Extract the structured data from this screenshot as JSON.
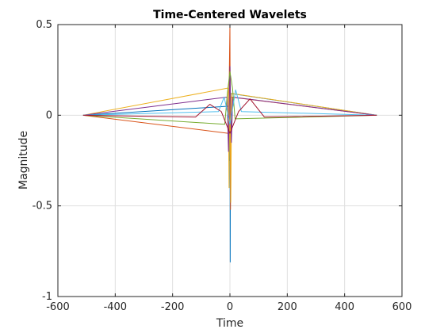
{
  "chart_data": {
    "type": "line",
    "title": "Time-Centered Wavelets",
    "xlabel": "Time",
    "ylabel": "Magnitude",
    "xlim": [
      -600,
      600
    ],
    "ylim": [
      -1,
      0.5
    ],
    "xticks": [
      -600,
      -400,
      -200,
      0,
      200,
      400,
      600
    ],
    "xtick_labels": [
      "-600",
      "-400",
      "-200",
      "0",
      "200",
      "400",
      "600"
    ],
    "yticks": [
      -1,
      -0.5,
      0,
      0.5
    ],
    "ytick_labels": [
      "-1",
      "-0.5",
      "0",
      "0.5"
    ],
    "grid": true,
    "legend": false,
    "series": [
      {
        "color": "#0072BD",
        "x": [
          -512,
          -2,
          -1,
          0,
          1,
          2,
          512
        ],
        "y": [
          0,
          0.05,
          -0.25,
          0.3,
          -0.81,
          0.12,
          0
        ]
      },
      {
        "color": "#D95319",
        "x": [
          -512,
          -4,
          -2,
          0,
          2,
          4,
          512
        ],
        "y": [
          0,
          -0.1,
          0.25,
          0.5,
          -0.52,
          0.1,
          0
        ]
      },
      {
        "color": "#EDB120",
        "x": [
          -512,
          -6,
          -3,
          0,
          3,
          6,
          512
        ],
        "y": [
          0,
          0.15,
          -0.4,
          0.27,
          -0.48,
          0.12,
          0
        ]
      },
      {
        "color": "#7E2F8E",
        "x": [
          -512,
          -10,
          -5,
          0,
          5,
          10,
          512
        ],
        "y": [
          0,
          0.1,
          -0.2,
          0.27,
          -0.15,
          0.1,
          0
        ]
      },
      {
        "color": "#77AC30",
        "x": [
          -512,
          -18,
          -9,
          0,
          9,
          18,
          512
        ],
        "y": [
          0,
          -0.05,
          0.12,
          0.24,
          0.15,
          -0.02,
          0
        ]
      },
      {
        "color": "#4DBEEE",
        "x": [
          -512,
          -40,
          -20,
          0,
          20,
          40,
          512
        ],
        "y": [
          0,
          0.02,
          0.1,
          -0.05,
          0.14,
          0.02,
          0
        ]
      },
      {
        "color": "#A2142F",
        "x": [
          -512,
          -120,
          -70,
          -30,
          0,
          30,
          70,
          120,
          512
        ],
        "y": [
          0,
          -0.01,
          0.06,
          0.02,
          -0.1,
          0.02,
          0.09,
          -0.01,
          0
        ]
      }
    ]
  }
}
